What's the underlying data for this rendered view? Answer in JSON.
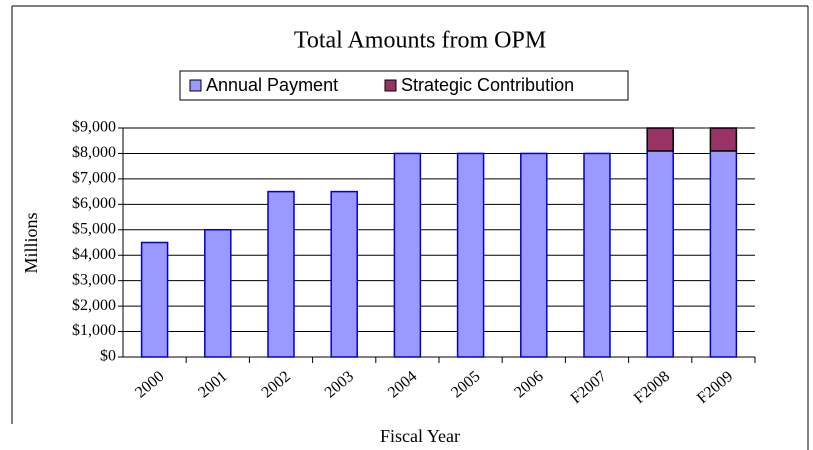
{
  "chart_data": {
    "type": "stacked-bar",
    "title": "Total Amounts from OPM",
    "x_label": "Fiscal Year",
    "y_label": "Millions",
    "categories": [
      "2000",
      "2001",
      "2002",
      "2003",
      "2004",
      "2005",
      "2006",
      "F2007",
      "F2008",
      "F2009"
    ],
    "series": [
      {
        "name": "Annual Payment",
        "color": "#9999ff",
        "values": [
          4500,
          5000,
          6500,
          6500,
          8000,
          8000,
          8000,
          8000,
          8100,
          8100
        ]
      },
      {
        "name": "Strategic Contribution",
        "color": "#993366",
        "values": [
          null,
          null,
          null,
          null,
          null,
          null,
          null,
          null,
          900,
          900
        ]
      }
    ],
    "ylim": [
      0,
      9000
    ],
    "yticks": [
      {
        "value": 0,
        "label": "$0"
      },
      {
        "value": 1000,
        "label": "$1,000"
      },
      {
        "value": 2000,
        "label": "$2,000"
      },
      {
        "value": 3000,
        "label": "$3,000"
      },
      {
        "value": 4000,
        "label": "$4,000"
      },
      {
        "value": 5000,
        "label": "$5,000"
      },
      {
        "value": 6000,
        "label": "$6,000"
      },
      {
        "value": 7000,
        "label": "$7,000"
      },
      {
        "value": 8000,
        "label": "$8,000"
      },
      {
        "value": 9000,
        "label": "$9,000"
      }
    ],
    "grid": true,
    "legend": "top"
  }
}
